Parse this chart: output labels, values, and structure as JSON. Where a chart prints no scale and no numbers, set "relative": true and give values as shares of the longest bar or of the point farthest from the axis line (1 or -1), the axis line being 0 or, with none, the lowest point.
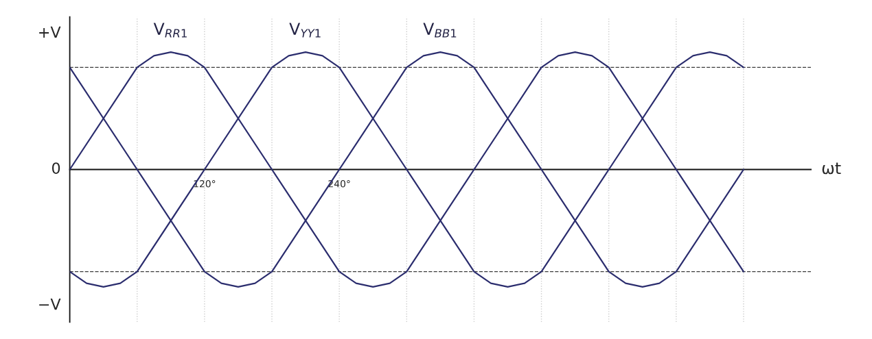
{
  "chart_data": {
    "type": "line",
    "relative": true,
    "xlabel": "ωt",
    "xlim": [
      0,
      660
    ],
    "xticks": [
      {
        "value": 120,
        "label": "120°"
      },
      {
        "value": 240,
        "label": "240°"
      }
    ],
    "annotations": [
      "+V",
      "0",
      "−V"
    ],
    "marker": "none",
    "line_style": "solid",
    "grid": false,
    "ref_lines": [
      {
        "axis": "y",
        "value": 0.87,
        "label": null,
        "color": "#3a3a3a",
        "line_style": "dashed"
      },
      {
        "axis": "y",
        "value": -0.87,
        "label": null,
        "color": "#3a3a3a",
        "line_style": "dashed"
      },
      {
        "axis": "x",
        "value": 60,
        "label": null,
        "color": "#cccccc",
        "line_style": "dotted"
      },
      {
        "axis": "x",
        "value": 120,
        "label": null,
        "color": "#cccccc",
        "line_style": "dotted"
      },
      {
        "axis": "x",
        "value": 180,
        "label": null,
        "color": "#cccccc",
        "line_style": "dotted"
      },
      {
        "axis": "x",
        "value": 240,
        "label": null,
        "color": "#cccccc",
        "line_style": "dotted"
      },
      {
        "axis": "x",
        "value": 300,
        "label": null,
        "color": "#cccccc",
        "line_style": "dotted"
      },
      {
        "axis": "x",
        "value": 360,
        "label": null,
        "color": "#cccccc",
        "line_style": "dotted"
      },
      {
        "axis": "x",
        "value": 420,
        "label": null,
        "color": "#cccccc",
        "line_style": "dotted"
      },
      {
        "axis": "x",
        "value": 480,
        "label": null,
        "color": "#cccccc",
        "line_style": "dotted"
      },
      {
        "axis": "x",
        "value": 540,
        "label": null,
        "color": "#cccccc",
        "line_style": "dotted"
      },
      {
        "axis": "x",
        "value": 600,
        "label": null,
        "color": "#cccccc",
        "line_style": "dotted"
      }
    ],
    "series": [
      {
        "name": "V$_{RR1}$",
        "color": "#2b2d6e",
        "x": [
          0,
          60,
          75,
          90,
          105,
          120,
          180,
          240,
          255,
          270,
          285,
          300,
          360,
          420,
          435,
          450,
          465,
          480,
          540,
          600
        ],
        "values": [
          0,
          0.87,
          0.97,
          1,
          0.97,
          0.87,
          0,
          -0.87,
          -0.97,
          -1,
          -0.97,
          -0.87,
          0,
          0.87,
          0.97,
          1,
          0.97,
          0.87,
          0,
          -0.87
        ]
      },
      {
        "name": "V$_{YY1}$",
        "color": "#2b2d6e",
        "x": [
          0,
          15,
          30,
          45,
          60,
          120,
          180,
          195,
          210,
          225,
          240,
          300,
          360,
          375,
          390,
          405,
          420,
          480,
          540,
          555,
          570,
          585,
          600
        ],
        "values": [
          -0.87,
          -0.97,
          -1,
          -0.97,
          -0.87,
          0,
          0.87,
          0.97,
          1,
          0.97,
          0.87,
          0,
          -0.87,
          -0.97,
          -1,
          -0.97,
          -0.87,
          0,
          0.87,
          0.97,
          1,
          0.97,
          0.87
        ]
      },
      {
        "name": "V$_{BB1}$",
        "color": "#2b2d6e",
        "x": [
          0,
          60,
          120,
          135,
          150,
          165,
          180,
          240,
          300,
          315,
          330,
          345,
          360,
          420,
          480,
          495,
          510,
          525,
          540,
          600
        ],
        "values": [
          0.87,
          0,
          -0.87,
          -0.97,
          -1,
          -0.97,
          -0.87,
          0,
          0.87,
          0.97,
          1,
          0.97,
          0.87,
          0,
          -0.87,
          -0.97,
          -1,
          -0.97,
          -0.87,
          0
        ]
      }
    ]
  }
}
